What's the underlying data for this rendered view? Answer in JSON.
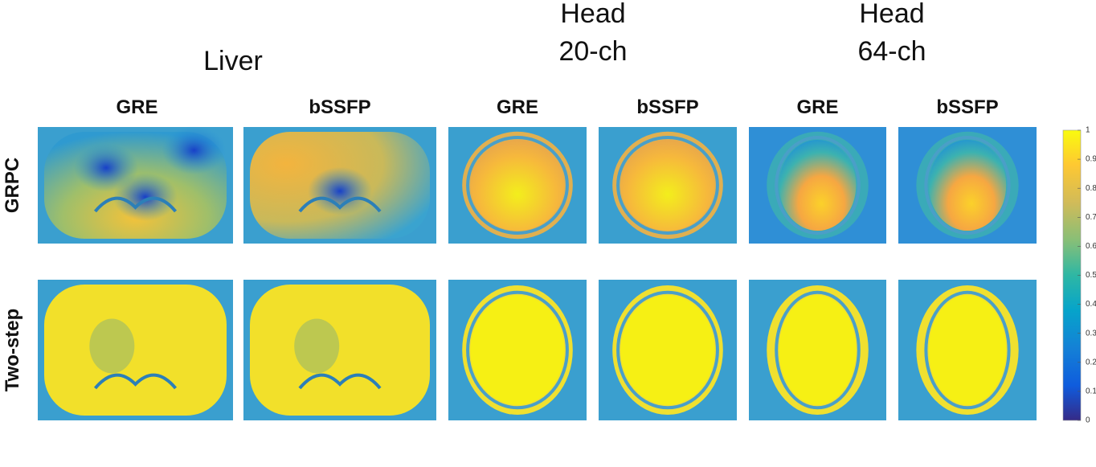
{
  "groups": [
    {
      "title": [
        "Liver"
      ]
    },
    {
      "title": [
        "Head",
        "20-ch"
      ]
    },
    {
      "title": [
        "Head",
        "64-ch"
      ]
    }
  ],
  "columns": [
    "GRE",
    "bSSFP",
    "GRE",
    "bSSFP",
    "GRE",
    "bSSFP"
  ],
  "rows": [
    "GRPC",
    "Two-step"
  ],
  "colorbar": {
    "lim": [
      0,
      1
    ],
    "ticks": [
      0,
      0.1,
      0.2,
      0.3,
      0.4,
      0.5,
      0.6,
      0.7,
      0.8,
      0.9,
      1
    ]
  }
}
